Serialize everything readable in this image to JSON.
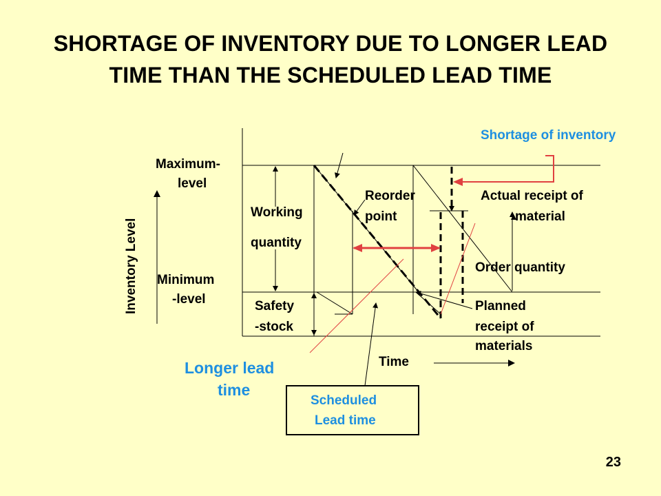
{
  "title_line1": "SHORTAGE OF INVENTORY DUE TO LONGER LEAD",
  "title_line2": "TIME THAN THE SCHEDULED LEAD TIME",
  "labels": {
    "max_level_1": "Maximum-",
    "max_level_2": "level",
    "min_level_1": "Minimum",
    "min_level_2": "-level",
    "y_axis": "Inventory Level",
    "working_1": "Working",
    "working_2": "quantity",
    "safety_1": "Safety",
    "safety_2": "-stock",
    "reorder_1": "Reorder",
    "reorder_2": "point",
    "actual_1": "Actual receipt of",
    "actual_2": "material",
    "order_qty": "Order quantity",
    "planned_1": "Planned",
    "planned_2": "receipt of",
    "planned_3": "materials",
    "time": "Time",
    "shortage": "Shortage of inventory",
    "longer_1": "Longer lead",
    "longer_2": "time",
    "scheduled_1": "Scheduled",
    "scheduled_2": "Lead time"
  },
  "page_number": "23",
  "colors": {
    "background": "#FFFFC8",
    "blue_text": "#1E8FE0",
    "red_arrow": "#E04040"
  }
}
